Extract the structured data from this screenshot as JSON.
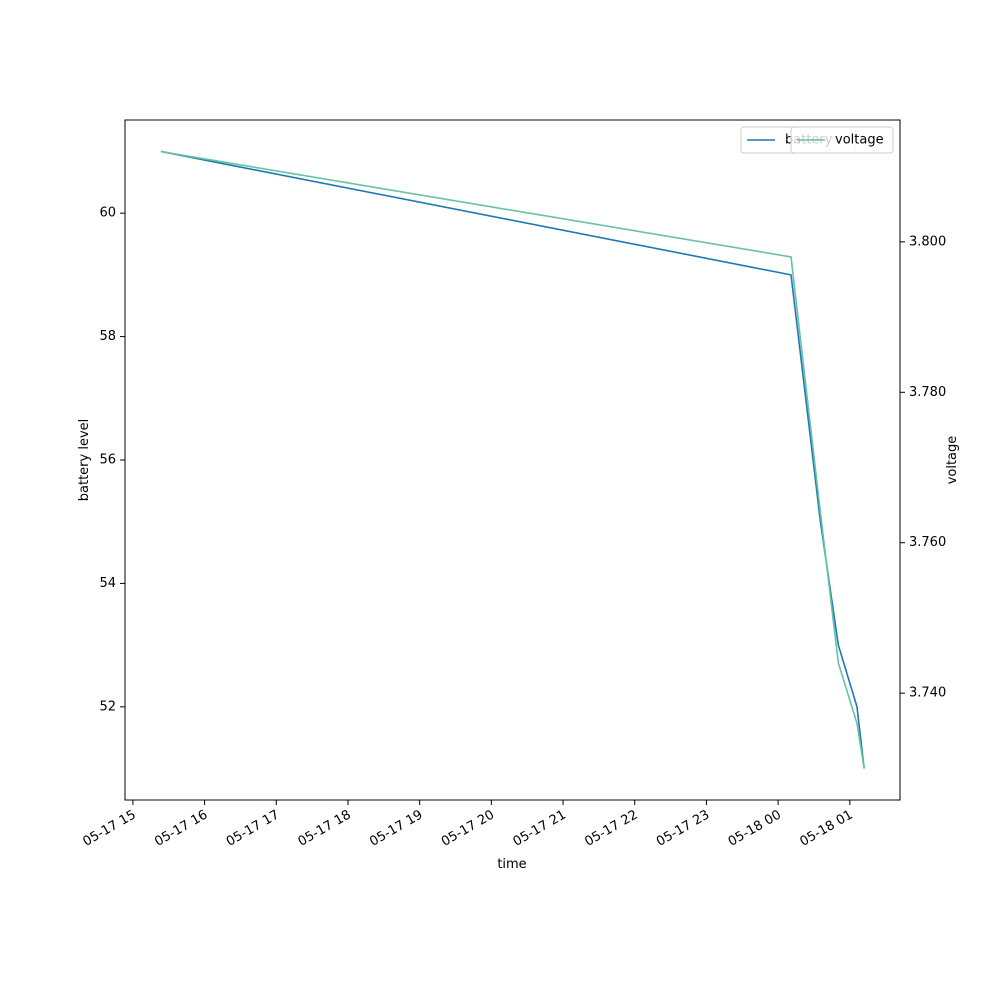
{
  "chart_data": {
    "type": "line",
    "x_label": "time",
    "y_label": "battery level",
    "y2_label": "voltage",
    "x": [
      15.39,
      24.18,
      24.59,
      24.84,
      25.1,
      25.2
    ],
    "xlim": [
      14.89,
      25.7
    ],
    "xticks": [
      {
        "value": 15,
        "label": "05-17 15"
      },
      {
        "value": 16,
        "label": "05-17 16"
      },
      {
        "value": 17,
        "label": "05-17 17"
      },
      {
        "value": 18,
        "label": "05-17 18"
      },
      {
        "value": 19,
        "label": "05-17 19"
      },
      {
        "value": 20,
        "label": "05-17 20"
      },
      {
        "value": 21,
        "label": "05-17 21"
      },
      {
        "value": 22,
        "label": "05-17 22"
      },
      {
        "value": 23,
        "label": "05-17 23"
      },
      {
        "value": 24,
        "label": "05-18 00"
      },
      {
        "value": 25,
        "label": "05-18 01"
      }
    ],
    "ylim": [
      50.49,
      61.51
    ],
    "yticks": [
      52,
      54,
      56,
      58,
      60
    ],
    "y2lim": [
      3.7258,
      3.8162
    ],
    "y2ticks": [
      {
        "value": 3.74,
        "label": "3.740"
      },
      {
        "value": 3.76,
        "label": "3.760"
      },
      {
        "value": 3.78,
        "label": "3.780"
      },
      {
        "value": 3.8,
        "label": "3.800"
      }
    ],
    "series": [
      {
        "name": "battery",
        "color": "#1f77b4",
        "values": [
          61,
          59,
          55,
          53,
          52,
          51
        ]
      },
      {
        "name": "voltage",
        "color": "#66c2a5",
        "axis": "y2",
        "values": [
          3.812,
          3.798,
          3.764,
          3.744,
          3.736,
          3.73
        ]
      }
    ],
    "legend": "upper right"
  }
}
